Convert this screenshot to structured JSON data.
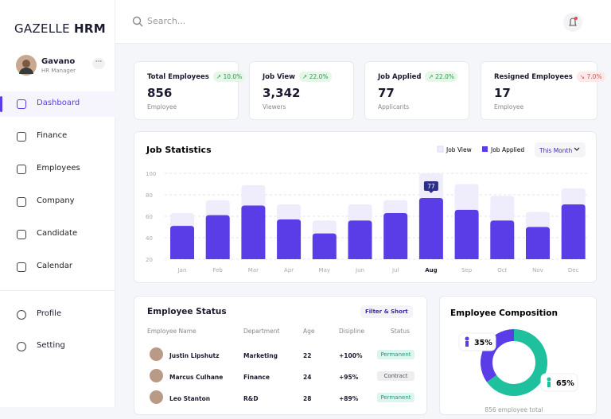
{
  "brand": {
    "name": "GAZELLE",
    "bold": "HRM"
  },
  "search_placeholder": "Search...",
  "user": {
    "name": "Gavano",
    "role": "HR Manager"
  },
  "nav": [
    "Dashboard",
    "Finance",
    "Employees",
    "Company",
    "Candidate",
    "Calendar"
  ],
  "active_nav": 0,
  "nav_secondary": [
    "Profile",
    "Setting"
  ],
  "cards": [
    {
      "title": "Total Employees",
      "change": "10.0%",
      "trend": "up",
      "value": "856",
      "unit": "Employee"
    },
    {
      "title": "Job View",
      "change": "22.0%",
      "trend": "up",
      "value": "3,342",
      "unit": "Viewers"
    },
    {
      "title": "Job Applied",
      "change": "22.0%",
      "trend": "up",
      "value": "77",
      "unit": "Applicants"
    },
    {
      "title": "Resigned Employees",
      "change": "7.0%",
      "trend": "down",
      "value": "17",
      "unit": "Employee"
    }
  ],
  "chart_data": [
    {
      "type": "bar",
      "title": "Job Statistics",
      "control": "This Month",
      "categories": [
        "Jan",
        "Feb",
        "Mar",
        "Apr",
        "May",
        "Jun",
        "Jul",
        "Aug",
        "Sep",
        "Oct",
        "Nov",
        "Dec"
      ],
      "series": [
        {
          "name": "Job View",
          "color": "#efecfb",
          "values": [
            63,
            75,
            89,
            71,
            56,
            71,
            75,
            100,
            90,
            79,
            64,
            86
          ]
        },
        {
          "name": "Job Applied",
          "color": "#5a3de6",
          "values": [
            51,
            61,
            70,
            57,
            44,
            56,
            63,
            77,
            66,
            56,
            50,
            71
          ]
        }
      ],
      "ylim": [
        20,
        100
      ],
      "yticks": [
        20,
        40,
        60,
        80,
        100
      ],
      "grid": true,
      "highlight": 7
    },
    {
      "type": "pie",
      "title": "Employee Composition",
      "subtitle": "856 employee total",
      "values": [
        35,
        65
      ],
      "value_labels": [
        "35%",
        "65%"
      ],
      "colors": [
        "#5a3de6",
        "#1fc09e"
      ]
    }
  ],
  "employee_status": {
    "title": "Employee Status",
    "filter": "Filter & Short",
    "columns": [
      "Employee Name",
      "Department",
      "Age",
      "Disipline",
      "Status"
    ],
    "rows": [
      {
        "name": "Justin Lipshutz",
        "department": "Marketing",
        "age": "22",
        "discipline": "+100%",
        "status": "Permanent",
        "status_color": "green"
      },
      {
        "name": "Marcus Culhane",
        "department": "Finance",
        "age": "24",
        "discipline": "+95%",
        "status": "Contract",
        "status_color": "grey"
      },
      {
        "name": "Leo Stanton",
        "department": "R&D",
        "age": "28",
        "discipline": "+89%",
        "status": "Permanent",
        "status_color": "green"
      }
    ]
  }
}
